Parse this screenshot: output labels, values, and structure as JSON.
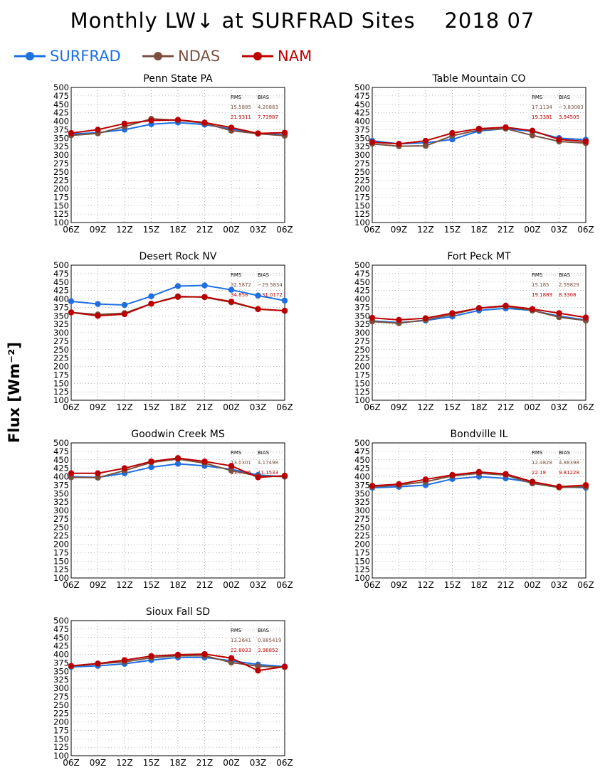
{
  "title": "Monthly LW↓ at SURFRAD Sites    2018 07",
  "ylabel": "Flux [Wm⁻²]",
  "legend": [
    {
      "name": "SURFRAD",
      "color": "#1e6fe0"
    },
    {
      "name": "NDAS",
      "color": "#7a5040"
    },
    {
      "name": "NAM",
      "color": "#bb0000"
    }
  ],
  "chart_data": [
    {
      "type": "line",
      "title": "Penn State PA",
      "categories": [
        "06Z",
        "09Z",
        "12Z",
        "15Z",
        "18Z",
        "21Z",
        "00Z",
        "03Z",
        "06Z"
      ],
      "ylim": [
        100,
        500
      ],
      "yticks": [
        "100",
        "125",
        "150",
        "175",
        "200",
        "225",
        "250",
        "275",
        "300",
        "325",
        "350",
        "375",
        "400",
        "425",
        "450",
        "475",
        "500"
      ],
      "grid": true,
      "stats": {
        "header": [
          "RMS",
          "BIAS"
        ],
        "ndas": [
          "15.5885",
          "4.20883"
        ],
        "nam": [
          "21.9311",
          "7.73987"
        ]
      },
      "series": [
        {
          "name": "SURFRAD",
          "values": [
            362,
            366,
            375,
            391,
            396,
            390,
            377,
            363,
            360
          ]
        },
        {
          "name": "NDAS",
          "values": [
            358,
            364,
            384,
            407,
            403,
            394,
            372,
            363,
            357
          ]
        },
        {
          "name": "NAM",
          "values": [
            365,
            375,
            393,
            402,
            404,
            396,
            381,
            364,
            366
          ]
        }
      ]
    },
    {
      "type": "line",
      "title": "Table Mountain CO",
      "categories": [
        "06Z",
        "09Z",
        "12Z",
        "15Z",
        "18Z",
        "21Z",
        "00Z",
        "03Z",
        "06Z"
      ],
      "ylim": [
        100,
        500
      ],
      "yticks": [
        "100",
        "125",
        "150",
        "175",
        "200",
        "225",
        "250",
        "275",
        "300",
        "325",
        "350",
        "375",
        "400",
        "425",
        "450",
        "475",
        "500"
      ],
      "grid": true,
      "stats": {
        "header": [
          "RMS",
          "BIAS"
        ],
        "ndas": [
          "17.1134",
          "−3.83083"
        ],
        "nam": [
          "19.3381",
          "3.94505"
        ]
      },
      "series": [
        {
          "name": "SURFRAD",
          "values": [
            342,
            333,
            336,
            346,
            371,
            378,
            370,
            350,
            345
          ]
        },
        {
          "name": "NDAS",
          "values": [
            333,
            326,
            327,
            357,
            374,
            378,
            358,
            340,
            335
          ]
        },
        {
          "name": "NAM",
          "values": [
            338,
            333,
            342,
            365,
            378,
            382,
            372,
            346,
            340
          ]
        }
      ]
    },
    {
      "type": "line",
      "title": "Desert Rock NV",
      "categories": [
        "06Z",
        "09Z",
        "12Z",
        "15Z",
        "18Z",
        "21Z",
        "00Z",
        "03Z",
        "06Z"
      ],
      "ylim": [
        100,
        500
      ],
      "yticks": [
        "100",
        "125",
        "150",
        "175",
        "200",
        "225",
        "250",
        "275",
        "300",
        "325",
        "350",
        "375",
        "400",
        "425",
        "450",
        "475",
        "500"
      ],
      "grid": true,
      "stats": {
        "header": [
          "RMS",
          "BIAS"
        ],
        "ndas": [
          "32.5872",
          "−29.5834"
        ],
        "nam": [
          "34.858",
          "−31.0172"
        ]
      },
      "series": [
        {
          "name": "SURFRAD",
          "values": [
            393,
            385,
            382,
            408,
            438,
            440,
            427,
            410,
            395
          ]
        },
        {
          "name": "NDAS",
          "values": [
            360,
            354,
            358,
            386,
            408,
            405,
            390,
            370,
            365
          ]
        },
        {
          "name": "NAM",
          "values": [
            360,
            350,
            355,
            386,
            406,
            406,
            392,
            370,
            365
          ]
        }
      ]
    },
    {
      "type": "line",
      "title": "Fort Peck MT",
      "categories": [
        "06Z",
        "09Z",
        "12Z",
        "15Z",
        "18Z",
        "21Z",
        "00Z",
        "03Z",
        "06Z"
      ],
      "ylim": [
        100,
        500
      ],
      "yticks": [
        "100",
        "125",
        "150",
        "175",
        "200",
        "225",
        "250",
        "275",
        "300",
        "325",
        "350",
        "375",
        "400",
        "425",
        "450",
        "475",
        "500"
      ],
      "grid": true,
      "stats": {
        "header": [
          "RMS",
          "BIAS"
        ],
        "ndas": [
          "15.185",
          "2.59829"
        ],
        "nam": [
          "19.1889",
          "8.3308"
        ]
      },
      "series": [
        {
          "name": "SURFRAD",
          "values": [
            335,
            330,
            336,
            348,
            366,
            372,
            366,
            349,
            338
          ]
        },
        {
          "name": "NDAS",
          "values": [
            333,
            328,
            338,
            354,
            373,
            378,
            366,
            346,
            336
          ]
        },
        {
          "name": "NAM",
          "values": [
            344,
            338,
            343,
            358,
            373,
            380,
            370,
            358,
            345
          ]
        }
      ]
    },
    {
      "type": "line",
      "title": "Goodwin Creek MS",
      "categories": [
        "06Z",
        "09Z",
        "12Z",
        "15Z",
        "18Z",
        "21Z",
        "00Z",
        "03Z",
        "06Z"
      ],
      "ylim": [
        100,
        500
      ],
      "yticks": [
        "100",
        "125",
        "150",
        "175",
        "200",
        "225",
        "250",
        "275",
        "300",
        "325",
        "350",
        "375",
        "400",
        "425",
        "450",
        "475",
        "500"
      ],
      "grid": true,
      "stats": {
        "header": [
          "RMS",
          "BIAS"
        ],
        "ndas": [
          "13.0301",
          "4.17498"
        ],
        "nam": [
          "13.7405",
          "11.1533"
        ]
      },
      "series": [
        {
          "name": "SURFRAD",
          "values": [
            400,
            398,
            410,
            428,
            438,
            432,
            422,
            405,
            400
          ]
        },
        {
          "name": "NDAS",
          "values": [
            398,
            397,
            418,
            442,
            452,
            440,
            418,
            402,
            400
          ]
        },
        {
          "name": "NAM",
          "values": [
            410,
            410,
            425,
            445,
            455,
            445,
            432,
            398,
            403
          ]
        }
      ]
    },
    {
      "type": "line",
      "title": "Bondville IL",
      "categories": [
        "06Z",
        "09Z",
        "12Z",
        "15Z",
        "18Z",
        "21Z",
        "00Z",
        "03Z",
        "06Z"
      ],
      "ylim": [
        100,
        500
      ],
      "yticks": [
        "100",
        "125",
        "150",
        "175",
        "200",
        "225",
        "250",
        "275",
        "300",
        "325",
        "350",
        "375",
        "400",
        "425",
        "450",
        "475",
        "500"
      ],
      "grid": true,
      "stats": {
        "header": [
          "RMS",
          "BIAS"
        ],
        "ndas": [
          "12.4828",
          "4.88398"
        ],
        "nam": [
          "22.18",
          "9.81228"
        ]
      },
      "series": [
        {
          "name": "SURFRAD",
          "values": [
            367,
            370,
            375,
            393,
            400,
            395,
            383,
            370,
            367
          ]
        },
        {
          "name": "NDAS",
          "values": [
            370,
            375,
            385,
            402,
            410,
            405,
            380,
            368,
            370
          ]
        },
        {
          "name": "NAM",
          "values": [
            373,
            378,
            392,
            405,
            414,
            408,
            385,
            370,
            375
          ]
        }
      ]
    },
    {
      "type": "line",
      "title": "Sioux Fall SD",
      "categories": [
        "06Z",
        "09Z",
        "12Z",
        "15Z",
        "18Z",
        "21Z",
        "00Z",
        "03Z",
        "06Z"
      ],
      "ylim": [
        100,
        500
      ],
      "yticks": [
        "100",
        "125",
        "150",
        "175",
        "200",
        "225",
        "250",
        "275",
        "300",
        "325",
        "350",
        "375",
        "400",
        "425",
        "450",
        "475",
        "500"
      ],
      "grid": true,
      "stats": {
        "header": [
          "RMS",
          "BIAS"
        ],
        "ndas": [
          "13.2641",
          "0.885419"
        ],
        "nam": [
          "22.8033",
          "3.98852"
        ]
      },
      "series": [
        {
          "name": "SURFRAD",
          "values": [
            363,
            366,
            372,
            383,
            391,
            391,
            381,
            370,
            364
          ]
        },
        {
          "name": "NDAS",
          "values": [
            365,
            372,
            378,
            390,
            396,
            396,
            376,
            365,
            362
          ]
        },
        {
          "name": "NAM",
          "values": [
            366,
            373,
            383,
            395,
            399,
            401,
            389,
            352,
            364
          ]
        }
      ]
    }
  ]
}
